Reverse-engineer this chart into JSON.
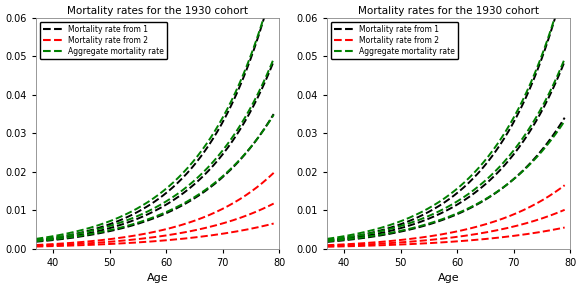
{
  "title": "Mortality rates for the 1930 cohort",
  "xlabel": "Age",
  "age_start": 37,
  "age_end": 79,
  "ylim": [
    0,
    0.06
  ],
  "yticks": [
    0.0,
    0.01,
    0.02,
    0.03,
    0.04,
    0.05,
    0.06
  ],
  "xticks": [
    40,
    50,
    60,
    70,
    80
  ],
  "legend_labels": [
    "Mortality rate from 1",
    "Mortality rate from 2",
    "Aggregate mortality rate"
  ],
  "legend_colors": [
    "black",
    "red",
    "green"
  ],
  "panel1": {
    "black_upper": {
      "a": 0.0022,
      "b": 0.082
    },
    "black_center": {
      "a": 0.002,
      "b": 0.076
    },
    "black_lower": {
      "a": 0.00185,
      "b": 0.07
    },
    "red_upper": {
      "a": 0.001,
      "b": 0.071
    },
    "red_center": {
      "a": 0.0008,
      "b": 0.064
    },
    "red_lower": {
      "a": 0.0006,
      "b": 0.057
    },
    "green_upper": {
      "a": 0.0026,
      "b": 0.078
    },
    "green_center": {
      "a": 0.0023,
      "b": 0.073
    },
    "green_lower": {
      "a": 0.002,
      "b": 0.068
    }
  },
  "panel2": {
    "black_upper": {
      "a": 0.0022,
      "b": 0.082
    },
    "black_center": {
      "a": 0.002,
      "b": 0.076
    },
    "black_lower": {
      "a": 0.0018,
      "b": 0.07
    },
    "red_upper": {
      "a": 0.00095,
      "b": 0.068
    },
    "red_center": {
      "a": 0.00075,
      "b": 0.062
    },
    "red_lower": {
      "a": 0.00055,
      "b": 0.055
    },
    "green_upper": {
      "a": 0.0026,
      "b": 0.078
    },
    "green_center": {
      "a": 0.0023,
      "b": 0.073
    },
    "green_lower": {
      "a": 0.00195,
      "b": 0.0675
    }
  },
  "background_color": "#ffffff",
  "fig_background": "#ffffff",
  "line_style": "--",
  "line_width": 1.4,
  "title_fontsize": 7.5,
  "xlabel_fontsize": 8,
  "tick_fontsize": 7,
  "legend_fontsize": 5.5
}
